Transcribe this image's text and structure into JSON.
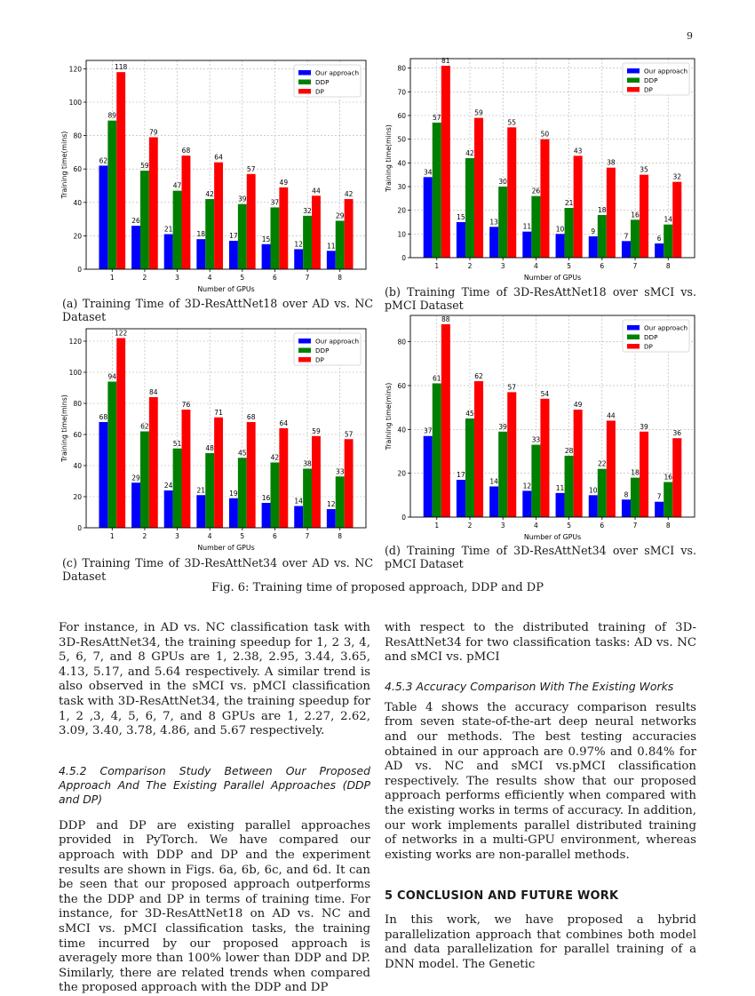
{
  "page": {
    "number": "9"
  },
  "legend": [
    "Our approach",
    "DDP",
    "DP"
  ],
  "colors": {
    "ours": "#0000ff",
    "ddp": "#008000",
    "dp": "#ff0000",
    "grid": "#b0b0b0"
  },
  "chart_data": [
    {
      "id": "a",
      "type": "bar",
      "title": "",
      "xlabel": "Number of GPUs",
      "ylabel": "Training time(mins)",
      "categories": [
        "1",
        "2",
        "3",
        "4",
        "5",
        "6",
        "7",
        "8"
      ],
      "ylim": [
        0,
        125
      ],
      "yticks": [
        0,
        20,
        40,
        60,
        80,
        100,
        120
      ],
      "series": [
        {
          "name": "Our approach",
          "values": [
            62,
            26,
            21,
            18,
            17,
            15,
            12,
            11
          ]
        },
        {
          "name": "DDP",
          "values": [
            89,
            59,
            47,
            42,
            39,
            37,
            32,
            29
          ]
        },
        {
          "name": "DP",
          "values": [
            118,
            79,
            68,
            64,
            57,
            49,
            44,
            42
          ]
        }
      ],
      "legend_position": "top-right",
      "grid": true
    },
    {
      "id": "b",
      "type": "bar",
      "title": "",
      "xlabel": "Number of GPUs",
      "ylabel": "Training time(mins)",
      "categories": [
        "1",
        "2",
        "3",
        "4",
        "5",
        "6",
        "7",
        "8"
      ],
      "ylim": [
        0,
        84
      ],
      "yticks": [
        0,
        10,
        20,
        30,
        40,
        50,
        60,
        70,
        80
      ],
      "series": [
        {
          "name": "Our approach",
          "values": [
            34,
            15,
            13,
            11,
            10,
            9,
            7,
            6
          ]
        },
        {
          "name": "DDP",
          "values": [
            57,
            42,
            30,
            26,
            21,
            18,
            16,
            14
          ]
        },
        {
          "name": "DP",
          "values": [
            81,
            59,
            55,
            50,
            43,
            38,
            35,
            32
          ]
        }
      ],
      "legend_position": "top-right",
      "grid": true
    },
    {
      "id": "c",
      "type": "bar",
      "title": "",
      "xlabel": "Number of GPUs",
      "ylabel": "Training time(mins)",
      "categories": [
        "1",
        "2",
        "3",
        "4",
        "5",
        "6",
        "7",
        "8"
      ],
      "ylim": [
        0,
        128
      ],
      "yticks": [
        0,
        20,
        40,
        60,
        80,
        100,
        120
      ],
      "series": [
        {
          "name": "Our approach",
          "values": [
            68,
            29,
            24,
            21,
            19,
            16,
            14,
            12
          ]
        },
        {
          "name": "DDP",
          "values": [
            94,
            62,
            51,
            48,
            45,
            42,
            38,
            33
          ]
        },
        {
          "name": "DP",
          "values": [
            122,
            84,
            76,
            71,
            68,
            64,
            59,
            57
          ]
        }
      ],
      "legend_position": "top-right",
      "grid": true
    },
    {
      "id": "d",
      "type": "bar",
      "title": "",
      "xlabel": "Number of GPUs",
      "ylabel": "Training time(mins)",
      "categories": [
        "1",
        "2",
        "3",
        "4",
        "5",
        "6",
        "7",
        "8"
      ],
      "ylim": [
        0,
        92
      ],
      "yticks": [
        0,
        20,
        40,
        60,
        80
      ],
      "series": [
        {
          "name": "Our approach",
          "values": [
            37,
            17,
            14,
            12,
            11,
            10,
            8,
            7
          ]
        },
        {
          "name": "DDP",
          "values": [
            61,
            45,
            39,
            33,
            28,
            22,
            18,
            16
          ]
        },
        {
          "name": "DP",
          "values": [
            88,
            62,
            57,
            54,
            49,
            44,
            39,
            36
          ]
        }
      ],
      "legend_position": "top-right",
      "grid": true
    }
  ],
  "captions": {
    "a": "(a) Training Time of 3D-ResAttNet18 over AD vs. NC Dataset",
    "b": "(b) Training Time of 3D-ResAttNet18 over sMCI vs. pMCI Dataset",
    "c": "(c) Training Time of 3D-ResAttNet34 over AD vs. NC Dataset",
    "d": "(d) Training Time of 3D-ResAttNet34 over sMCI vs. pMCI Dataset",
    "figure": "Fig. 6: Training time of proposed approach, DDP and DP"
  },
  "left_column": {
    "p1": "For instance, in AD vs. NC classification task with 3D-ResAttNet34, the training speedup for 1, 2 3, 4, 5, 6, 7, and 8 GPUs are 1, 2.38, 2.95, 3.44, 3.65, 4.13, 5.17, and 5.64 respectively. A similar trend is also observed in the sMCI vs. pMCI classification task with 3D-ResAttNet34, the training speedup for 1, 2 ,3, 4, 5, 6, 7, and 8 GPUs are 1, 2.27, 2.62, 3.09, 3.40, 3.78, 4.86, and 5.67 respectively.",
    "h452": "4.5.2   Comparison Study Between Our Proposed Approach And The Existing Parallel Approaches (DDP and DP)",
    "p2": "DDP and DP are existing parallel approaches provided in PyTorch. We have compared our approach with DDP and DP and the experiment results are shown in Figs. 6a, 6b, 6c, and 6d. It can be seen that our proposed approach outperforms the the DDP and DP in terms of training time. For instance, for 3D-ResAttNet18 on AD vs. NC and sMCI vs. pMCI classification tasks, the training time incurred by our proposed approach is averagely more than 100% lower than DDP and DP. Similarly, there are related trends when compared the proposed approach with the DDP and DP"
  },
  "right_column": {
    "p1": "with respect to the distributed training of 3D-ResAttNet34 for two classification tasks: AD vs. NC and sMCI vs. pMCI",
    "h453": "4.5.3   Accuracy Comparison With The Existing Works",
    "p2": "Table 4 shows the accuracy comparison results from seven state-of-the-art deep neural networks and our methods. The best testing accuracies obtained in our approach are 0.97% and 0.84% for AD vs. NC and sMCI vs.pMCI classification respectively. The results show that our proposed approach performs efficiently when compared with the existing works in terms of accuracy. In addition, our work implements parallel distributed training of networks in a multi-GPU environment, whereas existing works are non-parallel methods.",
    "h5": "5   CONCLUSION AND FUTURE WORK",
    "p3": "In this work, we have proposed a hybrid parallelization approach that combines both model and data parallelization for parallel training of a DNN model. The Genetic"
  }
}
